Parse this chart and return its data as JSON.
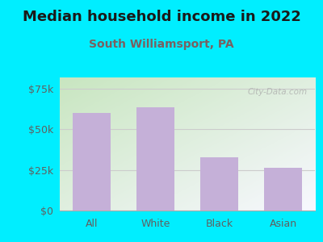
{
  "title": "Median household income in 2022",
  "subtitle": "South Williamsport, PA",
  "categories": [
    "All",
    "White",
    "Black",
    "Asian"
  ],
  "values": [
    60000,
    63500,
    33000,
    26500
  ],
  "bar_color": "#c5b0d8",
  "background_color": "#00eeff",
  "plot_bg_topleft": "#c8e6c0",
  "plot_bg_bottomright": "#f0f0f8",
  "title_color": "#1a1a1a",
  "subtitle_color": "#7a6060",
  "ylabel_ticks": [
    0,
    25000,
    50000,
    75000
  ],
  "ylabel_labels": [
    "$0",
    "$25k",
    "$50k",
    "$75k"
  ],
  "ylim": [
    0,
    82000
  ],
  "watermark": "City-Data.com",
  "tick_color": "#606060",
  "grid_color": "#cccccc",
  "title_fontsize": 13,
  "subtitle_fontsize": 10
}
